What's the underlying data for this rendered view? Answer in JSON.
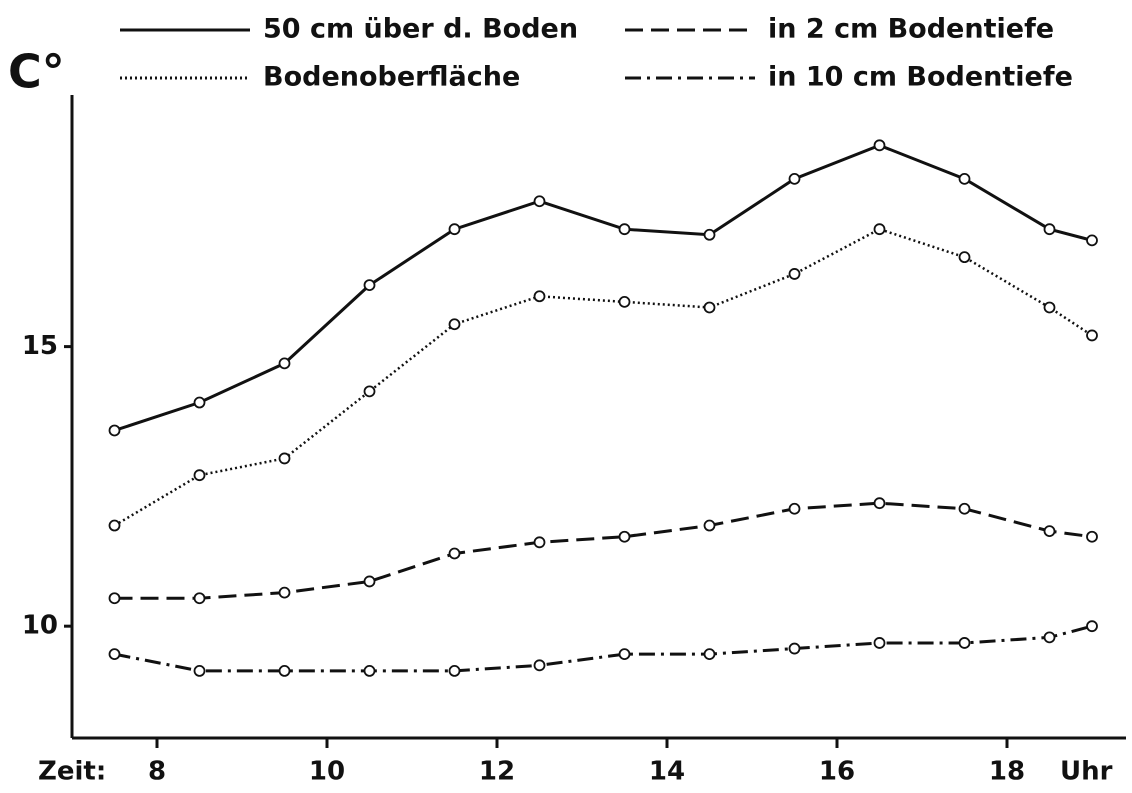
{
  "chart_data": {
    "type": "line",
    "y_label": "C°",
    "x_prefix": "Zeit:",
    "x_suffix": "Uhr",
    "x": [
      7.5,
      8.5,
      9.5,
      10.5,
      11.5,
      12.5,
      13.5,
      14.5,
      15.5,
      16.5,
      17.5,
      18.5,
      19
    ],
    "series": [
      {
        "name": "50 cm über d. Boden",
        "color": "#111111",
        "dash": "solid",
        "values": [
          13.5,
          14.0,
          14.7,
          16.1,
          17.1,
          17.6,
          17.1,
          17.0,
          18.0,
          18.6,
          18.0,
          17.1,
          16.9
        ]
      },
      {
        "name": "Bodenoberfläche",
        "color": "#111111",
        "dash": "dotted",
        "values": [
          11.8,
          12.7,
          13.0,
          14.2,
          15.4,
          15.9,
          15.8,
          15.7,
          16.3,
          17.1,
          16.6,
          15.7,
          15.2
        ]
      },
      {
        "name": "in 2 cm Bodentiefe",
        "color": "#111111",
        "dash": "dashed",
        "values": [
          10.5,
          10.5,
          10.6,
          10.8,
          11.3,
          11.5,
          11.6,
          11.8,
          12.1,
          12.2,
          12.1,
          11.7,
          11.6
        ]
      },
      {
        "name": "in 10 cm Bodentiefe",
        "color": "#111111",
        "dash": "dashdot",
        "values": [
          9.5,
          9.2,
          9.2,
          9.2,
          9.2,
          9.3,
          9.5,
          9.5,
          9.6,
          9.7,
          9.7,
          9.8,
          10.0
        ]
      }
    ],
    "xlim": [
      7,
      19.4
    ],
    "xticks": [
      8,
      10,
      12,
      14,
      16,
      18
    ],
    "ylim": [
      8,
      19.5
    ],
    "yticks": [
      10,
      15
    ]
  }
}
